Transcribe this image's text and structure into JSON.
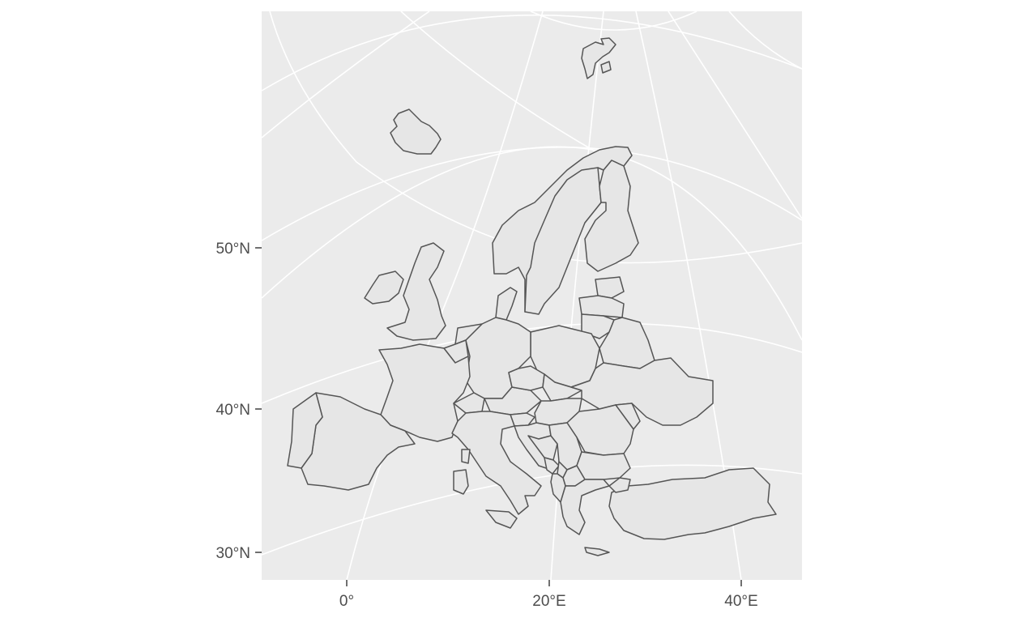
{
  "map": {
    "projection": "conic",
    "panel_color": "#ebebeb",
    "land_fill": "#e6e6e6",
    "border_color": "#555555",
    "grid_color": "#ffffff",
    "y_axis_labels": [
      "50°N",
      "40°N",
      "30°N"
    ],
    "x_axis_labels": [
      "0°",
      "20°E",
      "40°E"
    ]
  }
}
